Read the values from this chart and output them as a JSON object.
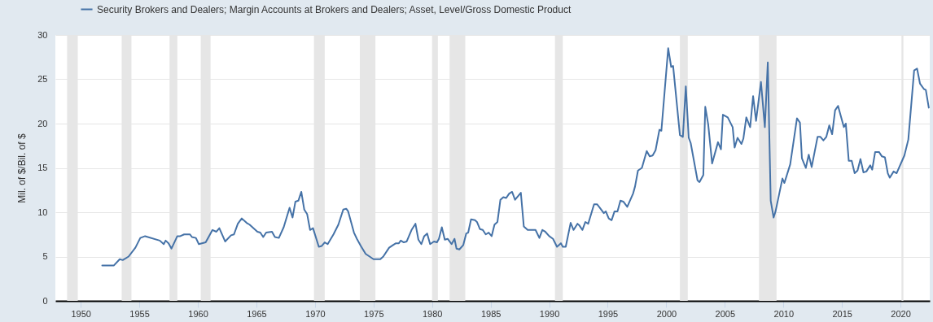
{
  "chart_data": {
    "type": "line",
    "ylabel": "Mil. of $/Bil. of $",
    "legend": "top left",
    "grid": "y",
    "line_style": "solid",
    "xlim": [
      "1947-11",
      "2022-07"
    ],
    "xticks": [
      "1950",
      "1955",
      "1960",
      "1965",
      "1970",
      "1975",
      "1980",
      "1985",
      "1990",
      "1995",
      "2000",
      "2005",
      "2010",
      "2015",
      "2020"
    ],
    "ylim": [
      0,
      30
    ],
    "yticks": [
      0,
      5,
      10,
      15,
      20,
      25,
      30
    ],
    "bands": [
      {
        "axis": "x",
        "from": "1948-11",
        "to": "1949-10",
        "color": "#e6e6e6"
      },
      {
        "axis": "x",
        "from": "1953-07",
        "to": "1954-05",
        "color": "#e6e6e6"
      },
      {
        "axis": "x",
        "from": "1957-08",
        "to": "1958-04",
        "color": "#e6e6e6"
      },
      {
        "axis": "x",
        "from": "1960-04",
        "to": "1961-02",
        "color": "#e6e6e6"
      },
      {
        "axis": "x",
        "from": "1969-12",
        "to": "1970-11",
        "color": "#e6e6e6"
      },
      {
        "axis": "x",
        "from": "1973-11",
        "to": "1975-03",
        "color": "#e6e6e6"
      },
      {
        "axis": "x",
        "from": "1980-01",
        "to": "1980-07",
        "color": "#e6e6e6"
      },
      {
        "axis": "x",
        "from": "1981-07",
        "to": "1982-11",
        "color": "#e6e6e6"
      },
      {
        "axis": "x",
        "from": "1990-07",
        "to": "1991-03",
        "color": "#e6e6e6"
      },
      {
        "axis": "x",
        "from": "2001-03",
        "to": "2001-11",
        "color": "#e6e6e6"
      },
      {
        "axis": "x",
        "from": "2007-12",
        "to": "2009-06",
        "color": "#e6e6e6"
      },
      {
        "axis": "x",
        "from": "2020-02",
        "to": "2020-04",
        "color": "#e6e6e6"
      }
    ],
    "x": [
      "1951-11",
      "1952-11",
      "1953-05",
      "1953-08",
      "1954-02",
      "1954-09",
      "1955-02",
      "1955-07",
      "1956-10",
      "1957-02",
      "1957-04",
      "1957-07",
      "1957-10",
      "1958-04",
      "1958-07",
      "1958-11",
      "1959-05",
      "1959-07",
      "1959-11",
      "1960-02",
      "1960-09",
      "1961-04",
      "1961-08",
      "1961-11",
      "1962-05",
      "1962-11",
      "1963-02",
      "1963-06",
      "1963-10",
      "1964-03",
      "1964-06",
      "1965-02",
      "1965-05",
      "1965-08",
      "1965-11",
      "1966-05",
      "1966-08",
      "1966-12",
      "1967-05",
      "1967-11",
      "1968-02",
      "1968-05",
      "1968-08",
      "1968-11",
      "1969-02",
      "1969-05",
      "1969-08",
      "1969-11",
      "1970-05",
      "1970-08",
      "1970-11",
      "1971-02",
      "1971-08",
      "1972-01",
      "1972-06",
      "1972-09",
      "1972-11",
      "1973-05",
      "1973-08",
      "1973-12",
      "1974-05",
      "1975-01",
      "1975-08",
      "1975-11",
      "1976-05",
      "1976-09",
      "1976-12",
      "1977-03",
      "1977-05",
      "1977-08",
      "1977-11",
      "1978-04",
      "1978-08",
      "1978-11",
      "1979-02",
      "1979-05",
      "1979-08",
      "1979-11",
      "1980-03",
      "1980-06",
      "1980-08",
      "1980-11",
      "1981-02",
      "1981-05",
      "1981-09",
      "1981-12",
      "1982-02",
      "1982-05",
      "1982-09",
      "1982-12",
      "1983-02",
      "1983-05",
      "1983-09",
      "1983-11",
      "1984-02",
      "1984-05",
      "1984-08",
      "1984-11",
      "1985-02",
      "1985-05",
      "1985-08",
      "1985-11",
      "1986-02",
      "1986-05",
      "1986-08",
      "1986-11",
      "1987-02",
      "1987-08",
      "1987-11",
      "1988-03",
      "1988-07",
      "1988-11",
      "1989-03",
      "1989-06",
      "1989-09",
      "1990-01",
      "1990-05",
      "1990-09",
      "1991-01",
      "1991-03",
      "1991-06",
      "1991-11",
      "1992-02",
      "1992-06",
      "1992-08",
      "1992-11",
      "1993-02",
      "1993-05",
      "1993-11",
      "1994-02",
      "1994-05",
      "1994-09",
      "1994-11",
      "1995-02",
      "1995-05",
      "1995-08",
      "1995-11",
      "1996-02",
      "1996-05",
      "1996-09",
      "1997-03",
      "1997-05",
      "1997-08",
      "1997-12",
      "1998-05",
      "1998-08",
      "1998-11",
      "1999-02",
      "1999-06",
      "1999-08",
      "2000-03",
      "2000-06",
      "2000-08",
      "2001-03",
      "2001-06",
      "2001-09",
      "2001-12",
      "2002-02",
      "2002-09",
      "2002-11",
      "2003-03",
      "2003-05",
      "2003-08",
      "2003-12",
      "2004-06",
      "2004-09",
      "2004-11",
      "2005-04",
      "2005-09",
      "2005-11",
      "2006-02",
      "2006-06",
      "2006-08",
      "2006-11",
      "2007-03",
      "2007-06",
      "2007-09",
      "2008-02",
      "2008-06",
      "2008-09",
      "2008-12",
      "2009-03",
      "2009-05",
      "2009-12",
      "2010-02",
      "2010-08",
      "2011-03",
      "2011-06",
      "2011-08",
      "2011-12",
      "2012-03",
      "2012-06",
      "2012-12",
      "2013-03",
      "2013-06",
      "2013-09",
      "2013-12",
      "2014-03",
      "2014-06",
      "2014-09",
      "2015-03",
      "2015-05",
      "2015-08",
      "2015-11",
      "2016-02",
      "2016-05",
      "2016-08",
      "2016-11",
      "2017-02",
      "2017-06",
      "2017-08",
      "2017-11",
      "2018-03",
      "2018-06",
      "2018-09",
      "2018-12",
      "2019-02",
      "2019-06",
      "2019-09",
      "2020-05",
      "2020-09",
      "2021-03",
      "2021-06",
      "2021-09",
      "2022-01",
      "2022-03",
      "2022-06"
    ],
    "series": [
      {
        "name": "Security Brokers and Dealers; Margin Accounts at Brokers and Dealers; Asset, Level/Gross Domestic Product",
        "color": "#4572a7",
        "values": [
          4.0,
          4.0,
          4.7,
          4.6,
          5.0,
          6.0,
          7.1,
          7.3,
          6.8,
          6.4,
          6.8,
          6.5,
          5.9,
          7.3,
          7.3,
          7.5,
          7.5,
          7.2,
          7.1,
          6.4,
          6.6,
          8.0,
          7.8,
          8.2,
          6.7,
          7.4,
          7.5,
          8.7,
          9.3,
          8.8,
          8.6,
          7.8,
          7.7,
          7.2,
          7.7,
          7.8,
          7.2,
          7.1,
          8.3,
          10.5,
          9.4,
          11.2,
          11.3,
          12.3,
          10.3,
          9.8,
          8.0,
          8.2,
          6.1,
          6.2,
          6.6,
          6.4,
          7.5,
          8.6,
          10.3,
          10.4,
          10.1,
          7.7,
          7.0,
          6.2,
          5.3,
          4.7,
          4.7,
          5.0,
          6.0,
          6.3,
          6.5,
          6.5,
          6.8,
          6.6,
          6.7,
          8.0,
          8.7,
          6.9,
          6.4,
          7.3,
          7.6,
          6.4,
          6.7,
          6.6,
          7.0,
          8.3,
          6.9,
          7.0,
          6.4,
          7.0,
          5.9,
          5.8,
          6.3,
          7.6,
          7.7,
          9.2,
          9.1,
          8.9,
          8.1,
          8.0,
          7.5,
          7.7,
          7.3,
          8.6,
          8.9,
          11.4,
          11.7,
          11.6,
          12.1,
          12.3,
          11.4,
          12.2,
          8.4,
          8.0,
          8.0,
          8.0,
          7.1,
          8.0,
          7.8,
          7.3,
          7.0,
          6.1,
          6.5,
          6.1,
          6.1,
          8.8,
          8.0,
          8.7,
          8.5,
          8.0,
          8.9,
          8.7,
          10.9,
          10.9,
          10.5,
          9.9,
          10.1,
          9.3,
          9.1,
          10.1,
          10.1,
          11.3,
          11.2,
          10.6,
          12.1,
          12.9,
          14.7,
          15.0,
          16.9,
          16.3,
          16.4,
          17.0,
          19.3,
          19.2,
          28.5,
          26.4,
          26.5,
          18.7,
          18.5,
          24.2,
          18.4,
          17.8,
          13.6,
          13.4,
          14.2,
          21.9,
          19.9,
          15.5,
          17.9,
          17.1,
          21.0,
          20.7,
          19.6,
          17.3,
          18.4,
          17.7,
          18.3,
          20.7,
          19.6,
          23.1,
          20.3,
          24.7,
          19.6,
          26.9,
          11.3,
          9.4,
          10.1,
          13.8,
          13.3,
          15.4,
          20.6,
          20.1,
          16.1,
          15.0,
          16.5,
          15.1,
          18.5,
          18.5,
          18.1,
          18.5,
          19.8,
          18.8,
          21.5,
          22.0,
          19.6,
          20.0,
          15.8,
          15.8,
          14.4,
          14.7,
          16.0,
          14.5,
          14.6,
          15.3,
          14.8,
          16.8,
          16.8,
          16.3,
          16.2,
          14.4,
          13.9,
          14.6,
          14.4,
          16.4,
          18.2,
          26.0,
          26.2,
          24.5,
          23.9,
          23.8,
          21.8
        ]
      }
    ]
  }
}
